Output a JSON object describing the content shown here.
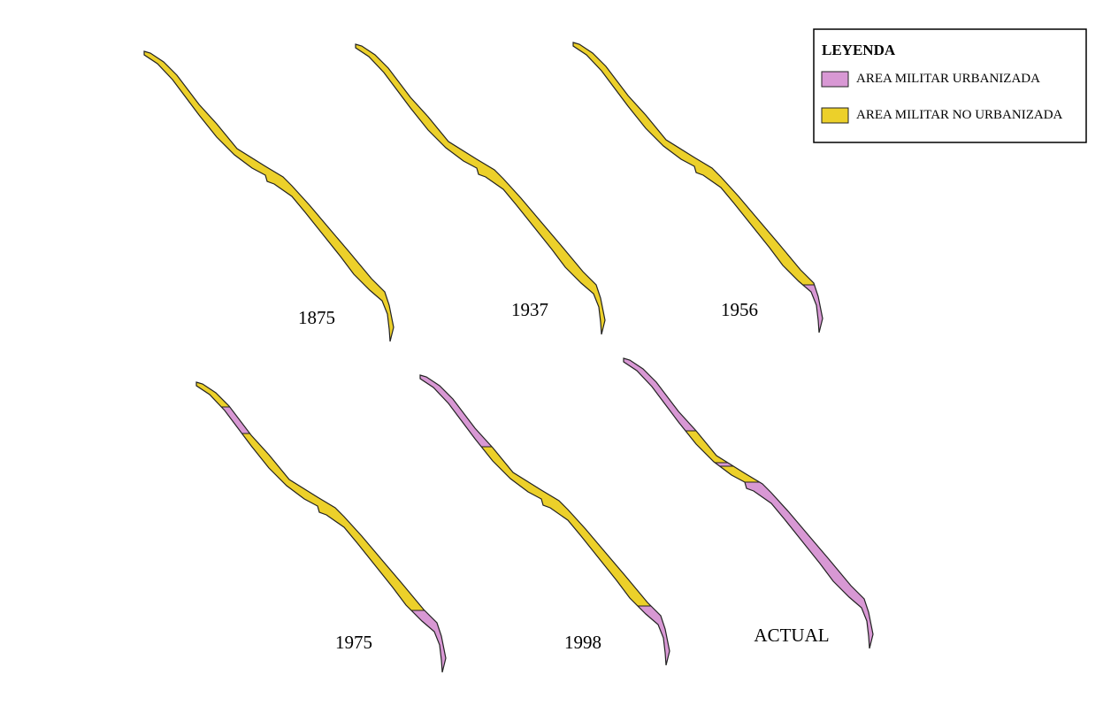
{
  "legend": {
    "title": "LEYENDA",
    "items": [
      "AREA MILITAR URBANIZADA",
      "AREA MILITAR NO URBANIZADA"
    ]
  },
  "panels": [
    "1875",
    "1937",
    "1956",
    "1975",
    "1998",
    "ACTUAL"
  ]
}
